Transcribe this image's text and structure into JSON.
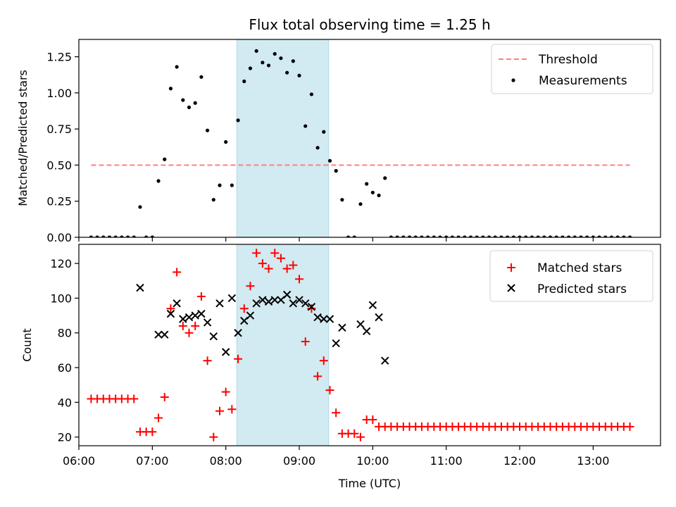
{
  "chart_data": [
    {
      "type": "scatter",
      "title": "Flux total observing time = 1.25 h",
      "xlabel": "",
      "ylabel": "Matched/Predicted stars",
      "xlim": [
        "06:00",
        "13:55"
      ],
      "ylim": [
        0,
        1.37
      ],
      "yticks": [
        "0.00",
        "0.25",
        "0.50",
        "0.75",
        "1.00",
        "1.25"
      ],
      "grid": false,
      "legend": {
        "placement": "top-right",
        "entries": [
          "Threshold",
          "Measurements"
        ]
      },
      "colors": {
        "threshold": "#ff7f7f",
        "measurements": "#000000",
        "shade": "#add8e6"
      },
      "shaded_interval": [
        "08:09",
        "09:24"
      ],
      "threshold": {
        "name": "Threshold",
        "y": 0.5,
        "x_range": [
          "06:10",
          "13:30"
        ]
      },
      "series": [
        {
          "name": "Measurements",
          "points": [
            [
              "06:10",
              0
            ],
            [
              "06:15",
              0
            ],
            [
              "06:20",
              0
            ],
            [
              "06:25",
              0
            ],
            [
              "06:30",
              0
            ],
            [
              "06:35",
              0
            ],
            [
              "06:40",
              0
            ],
            [
              "06:45",
              0
            ],
            [
              "06:50",
              0.21
            ],
            [
              "06:55",
              0
            ],
            [
              "07:00",
              0
            ],
            [
              "07:05",
              0.39
            ],
            [
              "07:10",
              0.54
            ],
            [
              "07:15",
              1.03
            ],
            [
              "07:20",
              1.18
            ],
            [
              "07:25",
              0.95
            ],
            [
              "07:30",
              0.9
            ],
            [
              "07:35",
              0.93
            ],
            [
              "07:40",
              1.11
            ],
            [
              "07:45",
              0.74
            ],
            [
              "07:50",
              0.26
            ],
            [
              "07:55",
              0.36
            ],
            [
              "08:00",
              0.66
            ],
            [
              "08:05",
              0.36
            ],
            [
              "08:10",
              0.81
            ],
            [
              "08:15",
              1.08
            ],
            [
              "08:20",
              1.17
            ],
            [
              "08:25",
              1.29
            ],
            [
              "08:30",
              1.21
            ],
            [
              "08:35",
              1.19
            ],
            [
              "08:40",
              1.27
            ],
            [
              "08:45",
              1.24
            ],
            [
              "08:50",
              1.14
            ],
            [
              "08:55",
              1.22
            ],
            [
              "09:00",
              1.12
            ],
            [
              "09:05",
              0.77
            ],
            [
              "09:10",
              0.99
            ],
            [
              "09:15",
              0.62
            ],
            [
              "09:20",
              0.73
            ],
            [
              "09:25",
              0.53
            ],
            [
              "09:30",
              0.46
            ],
            [
              "09:35",
              0.26
            ],
            [
              "09:40",
              0
            ],
            [
              "09:45",
              0
            ],
            [
              "09:50",
              0.23
            ],
            [
              "09:55",
              0.37
            ],
            [
              "10:00",
              0.31
            ],
            [
              "10:05",
              0.29
            ],
            [
              "10:10",
              0.41
            ],
            [
              "10:15",
              0
            ],
            [
              "10:20",
              0
            ],
            [
              "10:25",
              0
            ],
            [
              "10:30",
              0
            ],
            [
              "10:35",
              0
            ],
            [
              "10:40",
              0
            ],
            [
              "10:45",
              0
            ],
            [
              "10:50",
              0
            ],
            [
              "10:55",
              0
            ],
            [
              "11:00",
              0
            ],
            [
              "11:05",
              0
            ],
            [
              "11:10",
              0
            ],
            [
              "11:15",
              0
            ],
            [
              "11:20",
              0
            ],
            [
              "11:25",
              0
            ],
            [
              "11:30",
              0
            ],
            [
              "11:35",
              0
            ],
            [
              "11:40",
              0
            ],
            [
              "11:45",
              0
            ],
            [
              "11:50",
              0
            ],
            [
              "11:55",
              0
            ],
            [
              "12:00",
              0
            ],
            [
              "12:05",
              0
            ],
            [
              "12:10",
              0
            ],
            [
              "12:15",
              0
            ],
            [
              "12:20",
              0
            ],
            [
              "12:25",
              0
            ],
            [
              "12:30",
              0
            ],
            [
              "12:35",
              0
            ],
            [
              "12:40",
              0
            ],
            [
              "12:45",
              0
            ],
            [
              "12:50",
              0
            ],
            [
              "12:55",
              0
            ],
            [
              "13:00",
              0
            ],
            [
              "13:05",
              0
            ],
            [
              "13:10",
              0
            ],
            [
              "13:15",
              0
            ],
            [
              "13:20",
              0
            ],
            [
              "13:25",
              0
            ],
            [
              "13:30",
              0
            ]
          ]
        }
      ]
    },
    {
      "type": "scatter",
      "title": "",
      "xlabel": "Time (UTC)",
      "ylabel": "Count",
      "xlim": [
        "06:00",
        "13:55"
      ],
      "ylim": [
        15,
        131
      ],
      "xticks": [
        "06:00",
        "07:00",
        "08:00",
        "09:00",
        "10:00",
        "11:00",
        "12:00",
        "13:00"
      ],
      "yticks": [
        "20",
        "40",
        "60",
        "80",
        "100",
        "120"
      ],
      "grid": false,
      "legend": {
        "placement": "top-right",
        "entries": [
          "Matched stars",
          "Predicted stars"
        ]
      },
      "colors": {
        "matched": "#ff0000",
        "predicted": "#000000",
        "shade": "#add8e6"
      },
      "shaded_interval": [
        "08:09",
        "09:24"
      ],
      "series": [
        {
          "name": "Matched stars",
          "marker": "plus",
          "points": [
            [
              "06:10",
              42
            ],
            [
              "06:15",
              42
            ],
            [
              "06:20",
              42
            ],
            [
              "06:25",
              42
            ],
            [
              "06:30",
              42
            ],
            [
              "06:35",
              42
            ],
            [
              "06:40",
              42
            ],
            [
              "06:45",
              42
            ],
            [
              "06:50",
              23
            ],
            [
              "06:55",
              23
            ],
            [
              "07:00",
              23
            ],
            [
              "07:05",
              31
            ],
            [
              "07:10",
              43
            ],
            [
              "07:15",
              94
            ],
            [
              "07:20",
              115
            ],
            [
              "07:25",
              84
            ],
            [
              "07:30",
              80
            ],
            [
              "07:35",
              84
            ],
            [
              "07:40",
              101
            ],
            [
              "07:45",
              64
            ],
            [
              "07:50",
              20
            ],
            [
              "07:55",
              35
            ],
            [
              "08:00",
              46
            ],
            [
              "08:05",
              36
            ],
            [
              "08:10",
              65
            ],
            [
              "08:15",
              94
            ],
            [
              "08:20",
              107
            ],
            [
              "08:25",
              126
            ],
            [
              "08:30",
              120
            ],
            [
              "08:35",
              117
            ],
            [
              "08:40",
              126
            ],
            [
              "08:45",
              123
            ],
            [
              "08:50",
              117
            ],
            [
              "08:55",
              119
            ],
            [
              "09:00",
              111
            ],
            [
              "09:05",
              75
            ],
            [
              "09:10",
              94
            ],
            [
              "09:15",
              55
            ],
            [
              "09:20",
              64
            ],
            [
              "09:25",
              47
            ],
            [
              "09:30",
              34
            ],
            [
              "09:35",
              22
            ],
            [
              "09:40",
              22
            ],
            [
              "09:45",
              22
            ],
            [
              "09:50",
              20
            ],
            [
              "09:55",
              30
            ],
            [
              "10:00",
              30
            ],
            [
              "10:05",
              26
            ],
            [
              "10:10",
              26
            ],
            [
              "10:15",
              26
            ],
            [
              "10:20",
              26
            ],
            [
              "10:25",
              26
            ],
            [
              "10:30",
              26
            ],
            [
              "10:35",
              26
            ],
            [
              "10:40",
              26
            ],
            [
              "10:45",
              26
            ],
            [
              "10:50",
              26
            ],
            [
              "10:55",
              26
            ],
            [
              "11:00",
              26
            ],
            [
              "11:05",
              26
            ],
            [
              "11:10",
              26
            ],
            [
              "11:15",
              26
            ],
            [
              "11:20",
              26
            ],
            [
              "11:25",
              26
            ],
            [
              "11:30",
              26
            ],
            [
              "11:35",
              26
            ],
            [
              "11:40",
              26
            ],
            [
              "11:45",
              26
            ],
            [
              "11:50",
              26
            ],
            [
              "11:55",
              26
            ],
            [
              "12:00",
              26
            ],
            [
              "12:05",
              26
            ],
            [
              "12:10",
              26
            ],
            [
              "12:15",
              26
            ],
            [
              "12:20",
              26
            ],
            [
              "12:25",
              26
            ],
            [
              "12:30",
              26
            ],
            [
              "12:35",
              26
            ],
            [
              "12:40",
              26
            ],
            [
              "12:45",
              26
            ],
            [
              "12:50",
              26
            ],
            [
              "12:55",
              26
            ],
            [
              "13:00",
              26
            ],
            [
              "13:05",
              26
            ],
            [
              "13:10",
              26
            ],
            [
              "13:15",
              26
            ],
            [
              "13:20",
              26
            ],
            [
              "13:25",
              26
            ],
            [
              "13:30",
              26
            ]
          ]
        },
        {
          "name": "Predicted stars",
          "marker": "x",
          "points": [
            [
              "06:50",
              106
            ],
            [
              "07:05",
              79
            ],
            [
              "07:10",
              79
            ],
            [
              "07:15",
              91
            ],
            [
              "07:20",
              97
            ],
            [
              "07:25",
              88
            ],
            [
              "07:30",
              89
            ],
            [
              "07:35",
              90
            ],
            [
              "07:40",
              91
            ],
            [
              "07:45",
              86
            ],
            [
              "07:50",
              78
            ],
            [
              "07:55",
              97
            ],
            [
              "08:00",
              69
            ],
            [
              "08:05",
              100
            ],
            [
              "08:10",
              80
            ],
            [
              "08:15",
              87
            ],
            [
              "08:20",
              90
            ],
            [
              "08:25",
              97
            ],
            [
              "08:30",
              99
            ],
            [
              "08:35",
              98
            ],
            [
              "08:40",
              99
            ],
            [
              "08:45",
              99
            ],
            [
              "08:50",
              102
            ],
            [
              "08:55",
              97
            ],
            [
              "09:00",
              99
            ],
            [
              "09:05",
              97
            ],
            [
              "09:10",
              95
            ],
            [
              "09:15",
              89
            ],
            [
              "09:20",
              88
            ],
            [
              "09:25",
              88
            ],
            [
              "09:30",
              74
            ],
            [
              "09:35",
              83
            ],
            [
              "09:50",
              85
            ],
            [
              "09:55",
              81
            ],
            [
              "10:00",
              96
            ],
            [
              "10:05",
              89
            ],
            [
              "10:10",
              64
            ]
          ]
        }
      ]
    }
  ]
}
